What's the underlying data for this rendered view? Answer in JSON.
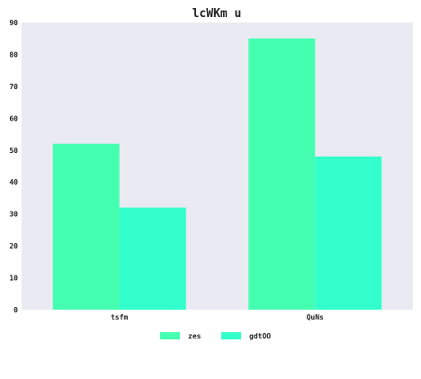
{
  "chart_data": {
    "type": "bar",
    "title": "lcWKm u",
    "xlabel": "",
    "ylabel": "",
    "categories": [
      "tsfm",
      "QuNs"
    ],
    "series": [
      {
        "name": "zes",
        "values": [
          52,
          85
        ],
        "color": "#45ffb0"
      },
      {
        "name": "gdtOO",
        "values": [
          32,
          48
        ],
        "color": "#33ffcc"
      }
    ],
    "ylim": [
      0,
      90
    ],
    "yticks": [
      0,
      10,
      20,
      30,
      40,
      50,
      60,
      70,
      80,
      90
    ],
    "grid": false,
    "legend_position": "bottom-center",
    "plot_background": "#eaeaf2"
  }
}
